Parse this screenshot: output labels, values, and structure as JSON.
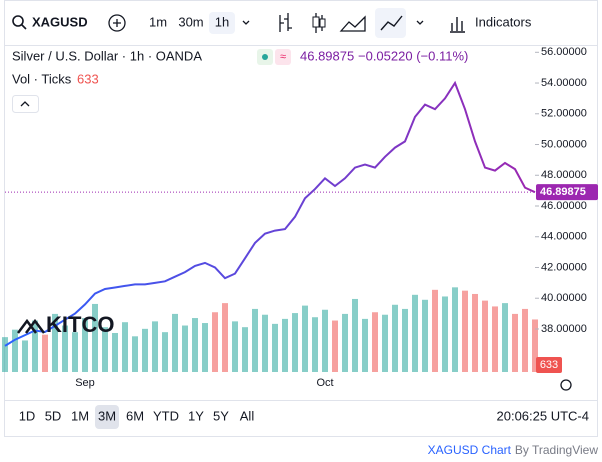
{
  "ui": {
    "symbol": "XAGUSD",
    "intervals": [
      "1m",
      "30m",
      "1h"
    ],
    "indicators": "Indicators",
    "change": "−0.05220 (−0.11%)",
    "logo": "KITCO",
    "ranges": [
      "1D",
      "5D",
      "1M",
      "3M",
      "6M",
      "YTD",
      "1Y",
      "5Y",
      "All"
    ],
    "clock": "20:06:25 UTC-4",
    "footer_link": "XAGUSD Chart",
    "footer_by": "By TradingView"
  },
  "chart_data": {
    "type": "line",
    "categories": [
      null,
      null,
      null,
      null,
      null,
      null,
      null,
      null,
      "Sep",
      null,
      null,
      null,
      null,
      null,
      null,
      null,
      null,
      null,
      null,
      null,
      null,
      null,
      null,
      null,
      null,
      null,
      null,
      null,
      null,
      null,
      null,
      null,
      "Oct",
      null,
      null,
      null,
      null,
      null,
      null,
      null,
      null,
      null,
      null,
      null,
      null,
      null,
      null,
      null,
      null,
      null,
      null,
      null,
      null,
      null
    ],
    "series": [
      {
        "name": "Silver / U.S. Dollar · 1h · OANDA",
        "color": "#2962ff",
        "color_end": "#9c27b0",
        "values": [
          36.9,
          37.3,
          37.6,
          37.9,
          37.8,
          38.2,
          38.6,
          39.0,
          39.6,
          40.3,
          40.6,
          40.7,
          40.8,
          40.9,
          40.9,
          41.0,
          41.1,
          41.4,
          41.7,
          42.1,
          42.3,
          42.0,
          41.3,
          41.6,
          42.6,
          43.6,
          44.2,
          44.4,
          44.5,
          45.3,
          46.5,
          47.1,
          47.8,
          47.3,
          47.8,
          48.5,
          48.7,
          48.5,
          49.2,
          49.8,
          50.2,
          51.8,
          52.6,
          52.3,
          53.0,
          54.0,
          52.3,
          50.2,
          48.5,
          48.3,
          48.8,
          48.4,
          47.2,
          46.89875
        ]
      }
    ],
    "last_price": 46.89875,
    "volume": {
      "name": "Vol · Ticks",
      "up_color": "#26a69a",
      "down_color": "#ef5350",
      "values": [
        420,
        510,
        380,
        620,
        450,
        700,
        560,
        480,
        650,
        820,
        540,
        470,
        600,
        430,
        520,
        610,
        480,
        700,
        560,
        650,
        590,
        720,
        830,
        610,
        540,
        760,
        690,
        580,
        640,
        710,
        800,
        660,
        750,
        620,
        700,
        880,
        640,
        720,
        690,
        810,
        760,
        930,
        870,
        990,
        910,
        1020,
        980,
        940,
        860,
        790,
        830,
        700,
        760,
        633
      ]
    },
    "ylim": [
      35.2,
      56.8
    ],
    "y2lim": [
      0,
      4000
    ],
    "yticks": [
      {
        "value": 38,
        "label": "38.00000"
      },
      {
        "value": 40,
        "label": "40.00000"
      },
      {
        "value": 42,
        "label": "42.00000"
      },
      {
        "value": 44,
        "label": "44.00000"
      },
      {
        "value": 46,
        "label": "46.00000"
      },
      {
        "value": 48,
        "label": "48.00000"
      },
      {
        "value": 50,
        "label": "50.00000"
      },
      {
        "value": 52,
        "label": "52.00000"
      },
      {
        "value": 54,
        "label": "54.00000"
      },
      {
        "value": 56,
        "label": "56.00000"
      }
    ],
    "grid": false
  }
}
